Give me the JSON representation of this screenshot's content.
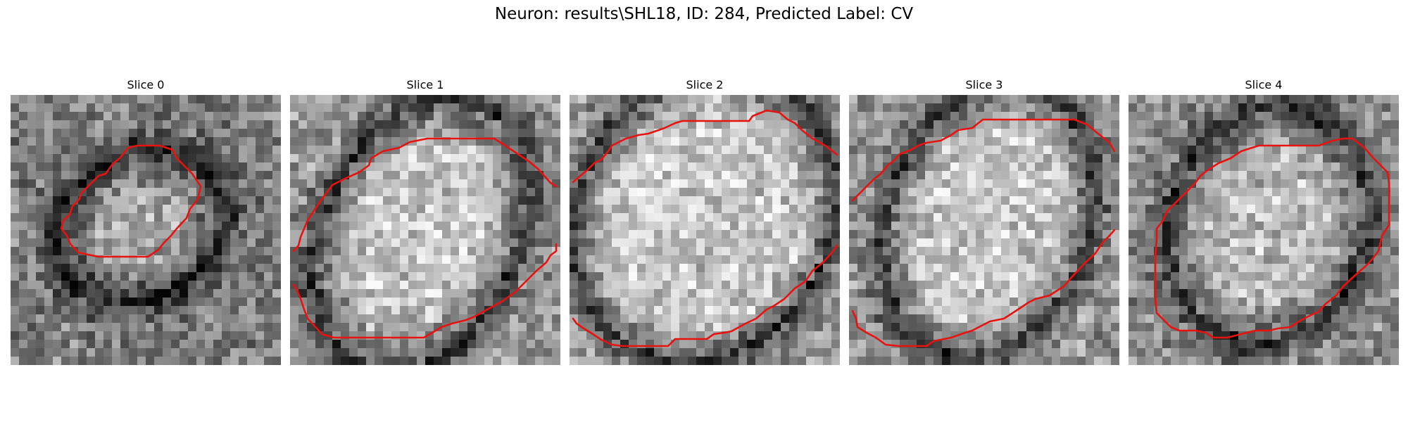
{
  "figure": {
    "title": "Neuron: results\\SHL18, ID: 284, Predicted Label: CV"
  },
  "colors": {
    "contour": "#e8120e",
    "background": "#ffffff"
  },
  "panels": [
    {
      "title": "Slice 0"
    },
    {
      "title": "Slice 1"
    },
    {
      "title": "Slice 2"
    },
    {
      "title": "Slice 3"
    },
    {
      "title": "Slice 4"
    }
  ]
}
